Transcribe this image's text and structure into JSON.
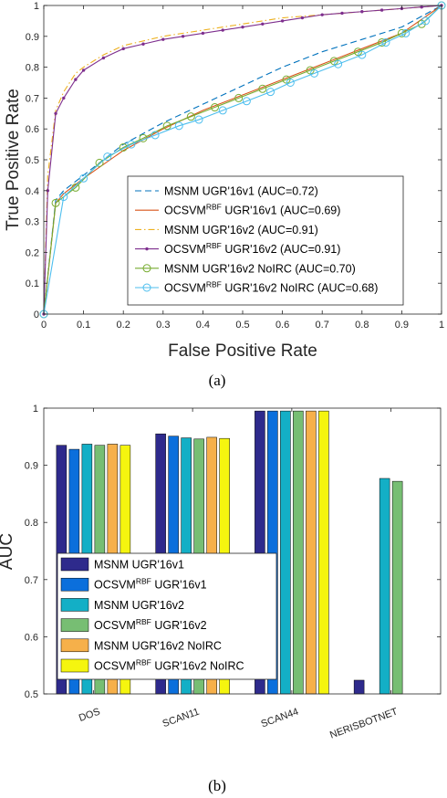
{
  "chart_data": [
    {
      "type": "line",
      "caption": "(a)",
      "xlabel": "False Positive Rate",
      "ylabel": "True Positive Rate",
      "xlim": [
        0,
        1
      ],
      "ylim": [
        0,
        1
      ],
      "xticks": [
        "0",
        "0.1",
        "0.2",
        "0.3",
        "0.4",
        "0.5",
        "0.6",
        "0.7",
        "0.8",
        "0.9",
        "1"
      ],
      "yticks": [
        "0",
        "0.1",
        "0.2",
        "0.3",
        "0.4",
        "0.5",
        "0.6",
        "0.7",
        "0.8",
        "0.9",
        "1"
      ],
      "grid": false,
      "legend_position": "bottom-right",
      "series": [
        {
          "name": "MSNM UGR'16v1 (AUC=0.72)",
          "name_main": "MSNM UGR'16v1 (AUC=0.72)",
          "name_sup": "",
          "name_rest": "",
          "color": "#0072BD",
          "style": "dashed",
          "marker": "none",
          "x": [
            0,
            0.03,
            0.05,
            0.1,
            0.2,
            0.3,
            0.4,
            0.5,
            0.6,
            0.7,
            0.8,
            0.9,
            1.0
          ],
          "y": [
            0,
            0.37,
            0.4,
            0.45,
            0.55,
            0.62,
            0.68,
            0.74,
            0.8,
            0.85,
            0.89,
            0.93,
            1.0
          ]
        },
        {
          "name": "OCSVM RBF UGR'16v1 (AUC=0.69)",
          "name_main": "OCSVM",
          "name_sup": "RBF",
          "name_rest": " UGR'16v1 (AUC=0.69)",
          "color": "#D95319",
          "style": "solid",
          "marker": "none",
          "x": [
            0,
            0.03,
            0.05,
            0.1,
            0.2,
            0.3,
            0.4,
            0.5,
            0.6,
            0.7,
            0.8,
            0.9,
            1.0
          ],
          "y": [
            0,
            0.36,
            0.39,
            0.44,
            0.53,
            0.6,
            0.66,
            0.71,
            0.76,
            0.81,
            0.86,
            0.91,
            1.0
          ]
        },
        {
          "name": "MSNM UGR'16v2 (AUC=0.91)",
          "name_main": "MSNM UGR'16v2 (AUC=0.91)",
          "name_sup": "",
          "name_rest": "",
          "color": "#EDB120",
          "style": "dashdot",
          "marker": "none",
          "x": [
            0,
            0.01,
            0.03,
            0.05,
            0.08,
            0.1,
            0.15,
            0.2,
            0.3,
            0.4,
            0.5,
            0.6,
            0.7,
            0.8,
            0.9,
            1.0
          ],
          "y": [
            0,
            0.45,
            0.66,
            0.72,
            0.78,
            0.8,
            0.84,
            0.87,
            0.9,
            0.92,
            0.94,
            0.96,
            0.97,
            0.98,
            0.99,
            1.0
          ]
        },
        {
          "name": "OCSVM RBF UGR'16v2 (AUC=0.91)",
          "name_main": "OCSVM",
          "name_sup": "RBF",
          "name_rest": " UGR'16v2 (AUC=0.91)",
          "color": "#7E2F8E",
          "style": "solid",
          "marker": "dot",
          "x": [
            0,
            0.01,
            0.03,
            0.05,
            0.08,
            0.1,
            0.15,
            0.2,
            0.25,
            0.3,
            0.35,
            0.4,
            0.45,
            0.5,
            0.55,
            0.6,
            0.65,
            0.7,
            0.75,
            0.8,
            0.85,
            0.9,
            0.95,
            1.0
          ],
          "y": [
            0,
            0.4,
            0.65,
            0.7,
            0.76,
            0.79,
            0.83,
            0.86,
            0.875,
            0.89,
            0.9,
            0.91,
            0.92,
            0.93,
            0.94,
            0.95,
            0.96,
            0.97,
            0.975,
            0.98,
            0.985,
            0.99,
            0.995,
            1.0
          ]
        },
        {
          "name": "MSNM UGR'16v2 NoIRC (AUC=0.70)",
          "name_main": "MSNM UGR'16v2 NoIRC (AUC=0.70)",
          "name_sup": "",
          "name_rest": "",
          "color": "#77AC30",
          "style": "solid",
          "marker": "circle",
          "x": [
            0,
            0.03,
            0.08,
            0.14,
            0.2,
            0.25,
            0.31,
            0.37,
            0.43,
            0.49,
            0.55,
            0.61,
            0.67,
            0.73,
            0.79,
            0.85,
            0.9,
            0.95,
            1.0
          ],
          "y": [
            0,
            0.36,
            0.41,
            0.49,
            0.54,
            0.57,
            0.61,
            0.64,
            0.67,
            0.7,
            0.73,
            0.76,
            0.79,
            0.82,
            0.85,
            0.88,
            0.91,
            0.94,
            1.0
          ]
        },
        {
          "name": "OCSVM RBF UGR'16v2 NoIRC (AUC=0.68)",
          "name_main": "OCSVM",
          "name_sup": "RBF",
          "name_rest": " UGR'16v2 NoIRC (AUC=0.68)",
          "color": "#4DBEEE",
          "style": "solid",
          "marker": "circle",
          "x": [
            0,
            0.05,
            0.1,
            0.16,
            0.22,
            0.28,
            0.34,
            0.39,
            0.45,
            0.51,
            0.57,
            0.62,
            0.68,
            0.74,
            0.8,
            0.86,
            0.91,
            0.96,
            1.0
          ],
          "y": [
            0,
            0.38,
            0.44,
            0.51,
            0.55,
            0.58,
            0.61,
            0.63,
            0.66,
            0.69,
            0.72,
            0.75,
            0.78,
            0.81,
            0.84,
            0.88,
            0.91,
            0.95,
            1.0
          ]
        }
      ]
    },
    {
      "type": "bar",
      "caption": "(b)",
      "xlabel": "",
      "ylabel": "AUC",
      "ylim": [
        0.5,
        1
      ],
      "yticks": [
        "0.5",
        "0.6",
        "0.7",
        "0.8",
        "0.9",
        "1"
      ],
      "categories": [
        "DOS",
        "SCAN11",
        "SCAN44",
        "NERISBOTNET"
      ],
      "grid": false,
      "legend_position": "bottom-left",
      "series": [
        {
          "name": "MSNM UGR'16v1",
          "name_main": "MSNM UGR'16v1",
          "name_sup": "",
          "name_rest": "",
          "color": "#2E2A8C",
          "values": [
            0.935,
            0.955,
            0.995,
            0.524
          ]
        },
        {
          "name": "OCSVM RBF UGR'16v1",
          "name_main": "OCSVM",
          "name_sup": "RBF",
          "name_rest": " UGR'16v1",
          "color": "#0B6FDC",
          "values": [
            0.928,
            0.951,
            0.995,
            0.5
          ]
        },
        {
          "name": "MSNM UGR'16v2",
          "name_main": "MSNM UGR'16v2",
          "name_sup": "",
          "name_rest": "",
          "color": "#13AFC6",
          "values": [
            0.937,
            0.948,
            0.995,
            0.877
          ]
        },
        {
          "name": "OCSVM RBF UGR'16v2",
          "name_main": "OCSVM",
          "name_sup": "RBF",
          "name_rest": " UGR'16v2",
          "color": "#77BE73",
          "values": [
            0.935,
            0.946,
            0.995,
            0.872
          ]
        },
        {
          "name": "MSNM UGR'16v2  NoIRC",
          "name_main": "MSNM UGR'16v2  NoIRC",
          "name_sup": "",
          "name_rest": "",
          "color": "#F6B04A",
          "values": [
            0.937,
            0.949,
            0.995,
            0.5
          ]
        },
        {
          "name": "OCSVM RBF UGR'16v2  NoIRC",
          "name_main": "OCSVM",
          "name_sup": "RBF",
          "name_rest": " UGR'16v2  NoIRC",
          "color": "#F5F50F",
          "values": [
            0.935,
            0.947,
            0.995,
            0.5
          ]
        }
      ]
    }
  ]
}
